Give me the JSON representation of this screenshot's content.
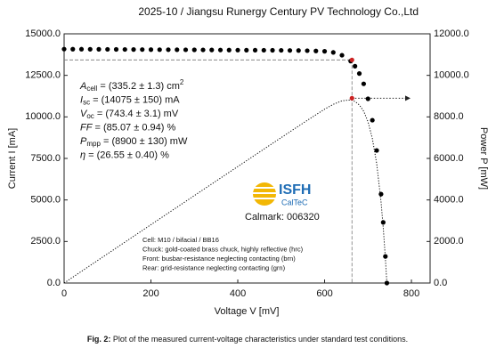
{
  "header": "2025-10 / Jiangsu Runergy Century PV Technology Co.,Ltd",
  "chart_data": {
    "type": "scatter",
    "x_label": "Voltage V [mV]",
    "y_label": "Current I [mA]",
    "y2_label": "Power P [mW]",
    "xlim": [
      0,
      843
    ],
    "ylim": [
      0,
      15000
    ],
    "y2lim": [
      0,
      12000
    ],
    "xticks": [
      0,
      200,
      400,
      600,
      800
    ],
    "yticks": [
      {
        "value": 0,
        "label": "0.0"
      },
      {
        "value": 2500,
        "label": "2500.0"
      },
      {
        "value": 5000,
        "label": "5000.0"
      },
      {
        "value": 7500,
        "label": "7500.0"
      },
      {
        "value": 10000,
        "label": "10000.0"
      },
      {
        "value": 12500,
        "label": "12500.0"
      },
      {
        "value": 15000,
        "label": "15000.0"
      }
    ],
    "y2ticks": [
      {
        "value": 0,
        "label": "0.0"
      },
      {
        "value": 2000,
        "label": "2000.0"
      },
      {
        "value": 4000,
        "label": "4000.0"
      },
      {
        "value": 6000,
        "label": "6000.0"
      },
      {
        "value": 8000,
        "label": "8000.0"
      },
      {
        "value": 10000,
        "label": "10000.0"
      },
      {
        "value": 12000,
        "label": "12000.0"
      }
    ],
    "x": [
      0,
      20,
      40,
      60,
      80,
      100,
      120,
      140,
      160,
      180,
      200,
      220,
      240,
      260,
      280,
      300,
      320,
      340,
      360,
      380,
      400,
      420,
      440,
      460,
      480,
      500,
      520,
      540,
      560,
      580,
      600,
      620,
      640,
      660,
      670,
      680,
      690,
      700,
      710,
      720,
      730,
      735,
      740,
      743.4
    ],
    "series": [
      {
        "color": "#000000",
        "style": "dots",
        "values": [
          14080,
          14077,
          14074,
          14071,
          14068,
          14065,
          14062,
          14059,
          14056,
          14053,
          14050,
          14047,
          14044,
          14041,
          14038,
          14035,
          14032,
          14029,
          14026,
          14023,
          14020,
          14017,
          14014,
          14011,
          14008,
          14005,
          14000,
          13995,
          13985,
          13970,
          13950,
          13880,
          13710,
          13360,
          13050,
          12610,
          11990,
          11090,
          9800,
          7980,
          5350,
          3650,
          1600,
          0
        ]
      },
      {
        "color": "#000000",
        "style": "dotted-line",
        "axis": "y2",
        "values": [
          0,
          281.5,
          563.0,
          844.3,
          1125.4,
          1406.5,
          1687.4,
          1968.3,
          2249.0,
          2529.5,
          2810.0,
          3090.3,
          3370.6,
          3650.7,
          3930.6,
          4210.5,
          4490.2,
          4769.9,
          5049.4,
          5328.7,
          5608.0,
          5887.1,
          6166.2,
          6445.1,
          6723.8,
          7002.5,
          7280.0,
          7557.3,
          7831.6,
          8102.6,
          8370.0,
          8605.6,
          8774.4,
          8817.6,
          8743.5,
          8574.8,
          8273.1,
          7763.0,
          6958.0,
          5745.6,
          3905.5,
          2682.8,
          1184.0,
          0
        ]
      }
    ],
    "mpp": {
      "x": 663,
      "current": 13430,
      "power": 8900,
      "color": "#cc2222"
    },
    "parameters": [
      {
        "sym": "A",
        "sub": "cell",
        "rest": " = (335.2 ± 1.3) cm",
        "sup": "2"
      },
      {
        "sym": "I",
        "sub": "sc",
        "rest": " = (14075 ± 150) mA"
      },
      {
        "sym": "V",
        "sub": "oc",
        "rest": " = (743.4 ± 3.1) mV"
      },
      {
        "sym": "FF",
        "rest": " = (85.07 ± 0.94) %"
      },
      {
        "sym": "P",
        "sub": "mpp",
        "rest": " = (8900 ± 130) mW"
      },
      {
        "sym": "η",
        "rest": " = (26.55 ± 0.40) %"
      }
    ],
    "logo": {
      "name": "ISFH",
      "sub": "CalTeC"
    },
    "calmark": "Calmark: 006320",
    "notes": [
      "Cell: M10 / bifacial / BB16",
      "Chuck: gold-coated brass chuck, highly reflective (hrc)",
      "Front: busbar-resistance neglecting contacting (brn)",
      "Rear: grid-resistance neglecting contacting (grn)"
    ]
  },
  "caption": {
    "label": "Fig. 2:",
    "text": " Plot of the measured current-voltage characteristics under standard test conditions."
  }
}
